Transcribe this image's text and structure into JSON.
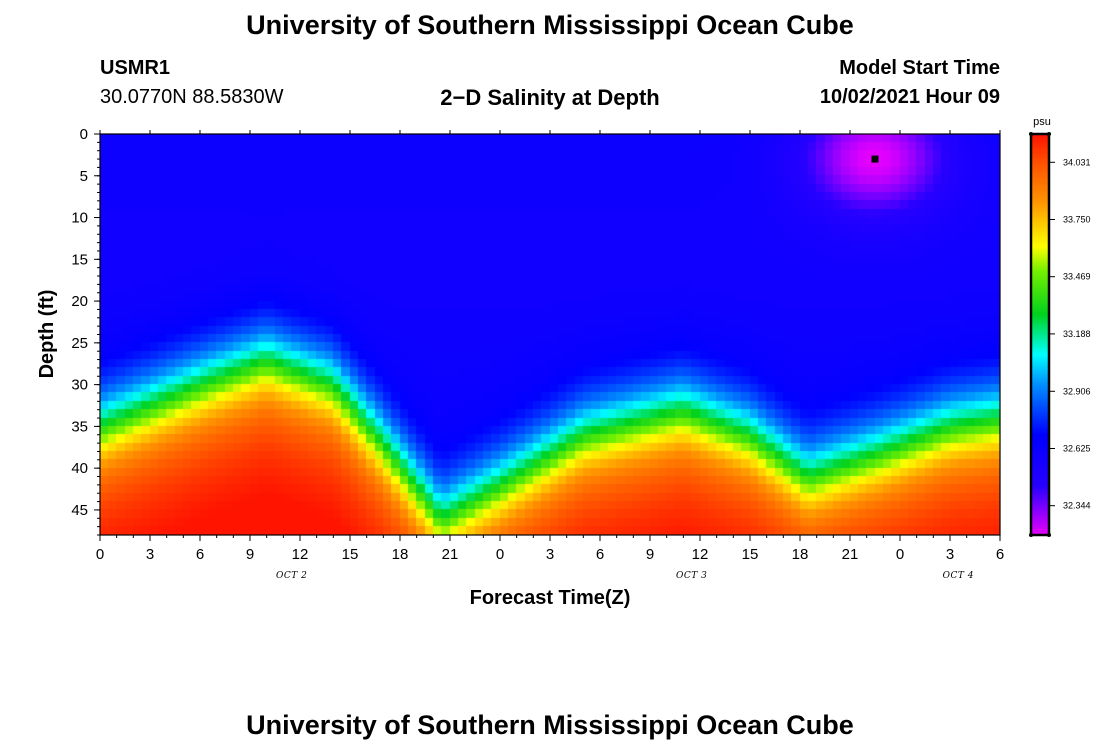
{
  "header": {
    "title_top": "University of Southern Mississippi Ocean Cube",
    "title_bottom": "University of Southern Mississippi Ocean Cube",
    "station_id": "USMR1",
    "station_coords": "30.0770N  88.5830W",
    "plot_title": "2−D Salinity at Depth",
    "model_start_label": "Model Start Time",
    "model_start_value": "10/02/2021 Hour 09"
  },
  "colors": {
    "background": "#ffffff",
    "marker": "#000000"
  },
  "chart_data": {
    "type": "heatmap",
    "title": "2−D Salinity at Depth",
    "xlabel": "Forecast Time(Z)",
    "ylabel": "Depth (ft)",
    "x_range_hours": [
      0,
      54
    ],
    "x_tick_labels": [
      "0",
      "3",
      "6",
      "9",
      "12",
      "15",
      "18",
      "21",
      "0",
      "3",
      "6",
      "9",
      "12",
      "15",
      "18",
      "21",
      "0",
      "3",
      "6"
    ],
    "x_tick_hours": [
      0,
      3,
      6,
      9,
      12,
      15,
      18,
      21,
      24,
      27,
      30,
      33,
      36,
      39,
      42,
      45,
      48,
      51,
      54
    ],
    "date_labels": [
      {
        "label": "OCT 2",
        "hour": 11.5
      },
      {
        "label": "OCT 3",
        "hour": 35.5
      },
      {
        "label": "OCT 4",
        "hour": 51.5
      }
    ],
    "y_range_ft": [
      0,
      48
    ],
    "y_tick_labels": [
      "0",
      "5",
      "10",
      "15",
      "20",
      "25",
      "30",
      "35",
      "40",
      "45"
    ],
    "y_tick_values": [
      0,
      5,
      10,
      15,
      20,
      25,
      30,
      35,
      40,
      45
    ],
    "halocline_depth_ft": {
      "hours": [
        0,
        6,
        10,
        14,
        17,
        20.5,
        24,
        29,
        35,
        39,
        42.5,
        47,
        51,
        54
      ],
      "depth": [
        35,
        30,
        27,
        30,
        37,
        46,
        42,
        36,
        33,
        36,
        41,
        38,
        35,
        34
      ]
    },
    "surface_min_spot": {
      "hour": 46.5,
      "depth_ft": 3,
      "value_psu": 32.2
    },
    "marker": {
      "hour": 46.5,
      "depth_ft": 3
    },
    "colorbar": {
      "unit": "psu",
      "min": 32.2,
      "max": 34.17,
      "tick_labels": [
        "34.031",
        "33.750",
        "33.469",
        "33.188",
        "32.906",
        "32.625",
        "32.344"
      ],
      "tick_values": [
        34.031,
        33.75,
        33.469,
        33.188,
        32.906,
        32.625,
        32.344
      ]
    }
  }
}
